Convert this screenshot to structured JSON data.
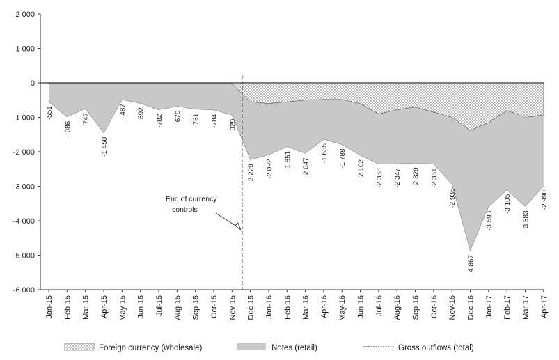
{
  "chart_data": {
    "type": "area",
    "categories": [
      "Jan-15",
      "Feb-15",
      "Mar-15",
      "Apr-15",
      "May-15",
      "Jun-15",
      "Jul-15",
      "Aug-15",
      "Sep-15",
      "Oct-15",
      "Nov-15",
      "Dec-15",
      "Jan-16",
      "Feb-16",
      "Mar-16",
      "Apr-16",
      "May-16",
      "Jun-16",
      "Jul-16",
      "Aug-16",
      "Sep-16",
      "Oct-16",
      "Nov-16",
      "Dec-16",
      "Jan-17",
      "Feb-17",
      "Mar-17",
      "Apr-17"
    ],
    "series": [
      {
        "name": "Foreign currency (wholesale)",
        "values": [
          -20,
          -20,
          -20,
          -20,
          -20,
          -20,
          -20,
          -20,
          -20,
          -20,
          -20,
          -550,
          -600,
          -550,
          -500,
          -480,
          -480,
          -600,
          -900,
          -780,
          -700,
          -850,
          -1000,
          -1380,
          -1150,
          -800,
          -1000,
          -930
        ]
      },
      {
        "name": "Notes (retail)",
        "values": [
          -531,
          -966,
          -727,
          -1430,
          -467,
          -572,
          -762,
          -659,
          -741,
          -764,
          -909,
          -1679,
          -1492,
          -1301,
          -1547,
          -1155,
          -1308,
          -1502,
          -1453,
          -1567,
          -1629,
          -1501,
          -1936,
          -3487,
          -2443,
          -2305,
          -2583,
          -2060
        ]
      },
      {
        "name": "Gross outflows (total)",
        "values": [
          -551,
          -986,
          -747,
          -1450,
          -487,
          -592,
          -782,
          -679,
          -761,
          -784,
          -929,
          -2229,
          -2092,
          -1851,
          -2047,
          -1635,
          -1788,
          -2102,
          -2353,
          -2347,
          -2329,
          -2351,
          -2936,
          -4867,
          -3593,
          -3105,
          -3583,
          -2990
        ]
      }
    ],
    "data_labels": [
      "-551",
      "-986",
      "-747",
      "-1 450",
      "-487",
      "-592",
      "-782",
      "-679",
      "-761",
      "-784",
      "-929",
      "-2 229",
      "-2 092",
      "-1 851",
      "-2 047",
      "-1 635",
      "-1 788",
      "-2 102",
      "-2 353",
      "-2 347",
      "-2 329",
      "-2 351",
      "-2 936",
      "-4 867",
      "-3 593",
      "-3 105",
      "-3 583",
      "-2 990"
    ],
    "y_ticks": [
      2000,
      1000,
      0,
      -1000,
      -2000,
      -3000,
      -4000,
      -5000,
      -6000
    ],
    "y_tick_labels": [
      "2 000",
      "1 000",
      "0",
      "-1 000",
      "-2 000",
      "-3 000",
      "-4 000",
      "-5 000",
      "-6 000"
    ],
    "ylim": [
      -6000,
      2000
    ],
    "grid": false,
    "legend_position": "bottom",
    "annotation": {
      "lines": [
        "End of currency",
        "controls"
      ],
      "at_category": "Nov-15"
    },
    "colors": {
      "foreign": "#e8e8e8",
      "notes": "#c8c8c8",
      "axis": "#333333"
    }
  }
}
